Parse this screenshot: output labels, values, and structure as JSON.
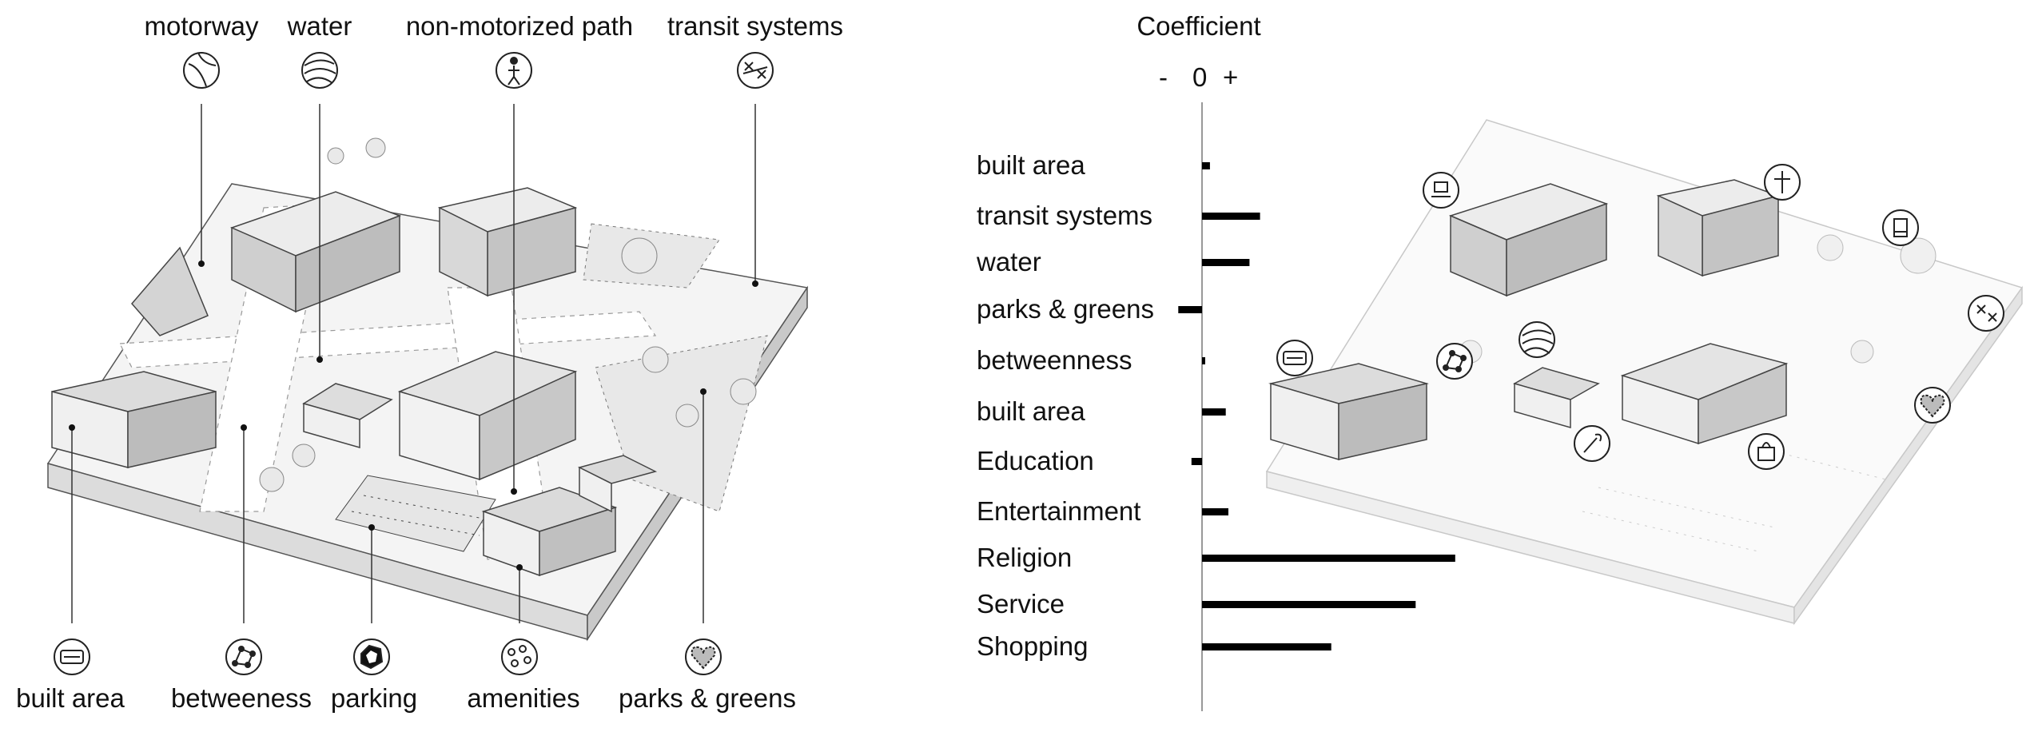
{
  "left_panel": {
    "top_labels": [
      {
        "text": "motorway",
        "icon": "motorway-icon"
      },
      {
        "text": "water",
        "icon": "water-icon"
      },
      {
        "text": "non-motorized path",
        "icon": "pedestrian-icon"
      },
      {
        "text": "transit systems",
        "icon": "transit-icon"
      }
    ],
    "bottom_labels": [
      {
        "text": "built area",
        "icon": "built-area-icon"
      },
      {
        "text": "betweeness",
        "icon": "network-icon"
      },
      {
        "text": "parking",
        "icon": "parking-icon"
      },
      {
        "text": "amenities",
        "icon": "amenities-icon"
      },
      {
        "text": "parks & greens",
        "icon": "heart-park-icon"
      }
    ]
  },
  "chart_data": {
    "type": "bar",
    "title": "Coefficient",
    "axis_signs": {
      "minus": "-",
      "zero": "0",
      "plus": "+"
    },
    "categories": [
      "built area",
      "transit systems",
      "water",
      "parks & greens",
      "betweenness",
      "built area",
      "Education",
      "Entertainment",
      "Religion",
      "Service",
      "Shopping"
    ],
    "values": [
      0.03,
      0.22,
      0.18,
      -0.09,
      0.01,
      0.09,
      -0.04,
      0.1,
      0.96,
      0.81,
      0.49
    ],
    "xlim": [
      -0.1,
      1.0
    ]
  },
  "right_panel": {
    "icons": [
      "chair-icon",
      "cross-icon",
      "book-icon",
      "transit-icon",
      "water-icon",
      "network-icon",
      "sofa-icon",
      "wrench-icon",
      "bag-icon",
      "heart-park-icon"
    ]
  }
}
